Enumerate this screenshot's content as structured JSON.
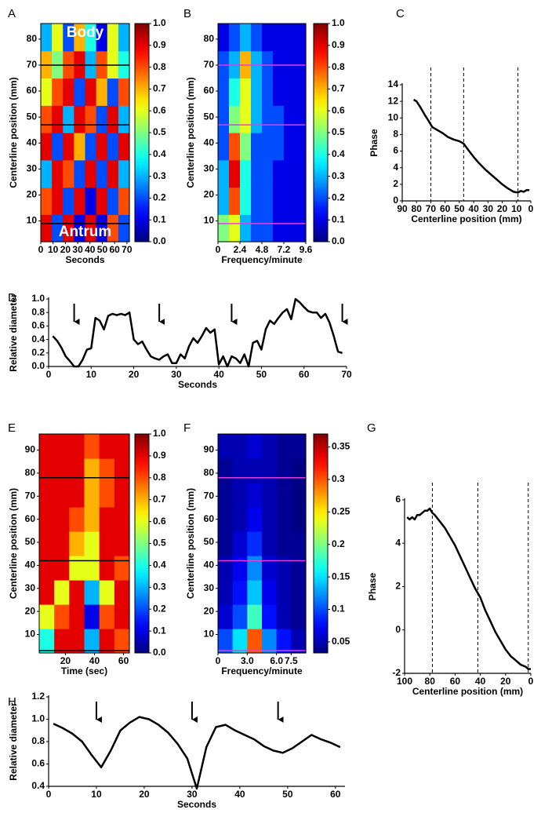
{
  "chart_data": [
    {
      "type": "heatmap",
      "label": "A",
      "xlabel": "Seconds",
      "ylabel": "Centerline position (mm)",
      "xlim": [
        0,
        72
      ],
      "ylim": [
        2,
        86
      ],
      "xticks": [
        0,
        10,
        20,
        30,
        40,
        50,
        60,
        70
      ],
      "yticks": [
        10,
        20,
        30,
        40,
        50,
        60,
        70,
        80
      ],
      "colormap": "jet",
      "clim": [
        0,
        1
      ],
      "cticks": [
        {
          "value": 0,
          "label": "0.0"
        },
        0.1,
        0.2,
        0.3,
        0.4,
        0.5,
        0.6,
        0.7,
        0.8,
        0.9,
        {
          "value": 1,
          "label": "1.0"
        }
      ],
      "hlines": [
        70,
        47,
        9
      ],
      "hline_color": "#000000",
      "annotations": [
        "Body",
        "Antrum"
      ],
      "z": [
        [
          0.9,
          0.2,
          0.9,
          0.1,
          0.9,
          0.1,
          0.8,
          0.2
        ],
        [
          0.8,
          0.9,
          0.2,
          0.9,
          0.1,
          0.9,
          0.2,
          0.8
        ],
        [
          0.3,
          0.9,
          0.8,
          0.2,
          0.9,
          0.2,
          0.9,
          0.3
        ],
        [
          0.9,
          0.2,
          0.9,
          0.7,
          0.2,
          0.9,
          0.2,
          0.9
        ],
        [
          0.8,
          0.9,
          0.3,
          0.9,
          0.8,
          0.2,
          0.9,
          0.3
        ],
        [
          0.6,
          0.8,
          0.9,
          0.2,
          0.9,
          0.7,
          0.2,
          0.8
        ],
        [
          0.7,
          0.5,
          0.8,
          0.9,
          0.3,
          0.8,
          0.6,
          0.4
        ],
        [
          0.3,
          0.6,
          0.2,
          0.7,
          0.4,
          0.1,
          0.6,
          0.3
        ]
      ]
    },
    {
      "type": "heatmap",
      "label": "B",
      "xlabel": "Frequency/minute",
      "ylabel": "Centerline position (mm)",
      "xlim": [
        0,
        9.6
      ],
      "ylim": [
        2,
        86
      ],
      "xticks": [
        0,
        2.4,
        4.8,
        7.2,
        9.6
      ],
      "yticks": [
        10,
        20,
        30,
        40,
        50,
        60,
        70,
        80
      ],
      "colormap": "jet",
      "clim": [
        0,
        1
      ],
      "cticks": [
        {
          "value": 0,
          "label": "0.0"
        },
        0.1,
        0.2,
        0.3,
        0.4,
        0.5,
        0.6,
        0.7,
        0.8,
        0.9,
        {
          "value": 1,
          "label": "1.0"
        }
      ],
      "hlines": [
        70,
        47,
        9
      ],
      "hline_color": "#e040e0",
      "z": [
        [
          0.5,
          0.6,
          0.3,
          0.2,
          0.2,
          0.1,
          0.1,
          0.1
        ],
        [
          0.3,
          0.8,
          0.4,
          0.2,
          0.2,
          0.1,
          0.1,
          0.1
        ],
        [
          0.3,
          0.9,
          0.4,
          0.2,
          0.2,
          0.1,
          0.1,
          0.1
        ],
        [
          0.2,
          0.8,
          0.5,
          0.2,
          0.2,
          0.2,
          0.1,
          0.1
        ],
        [
          0.2,
          0.5,
          0.6,
          0.3,
          0.2,
          0.2,
          0.1,
          0.1
        ],
        [
          0.2,
          0.4,
          0.6,
          0.3,
          0.2,
          0.1,
          0.1,
          0.1
        ],
        [
          0.2,
          0.3,
          0.7,
          0.3,
          0.2,
          0.1,
          0.1,
          0.1
        ],
        [
          0.1,
          0.2,
          0.3,
          0.2,
          0.1,
          0.1,
          0.1,
          0.1
        ]
      ]
    },
    {
      "type": "line",
      "label": "C",
      "xlabel": "Centerline position (mm)",
      "ylabel": "Phase",
      "color": "#000000",
      "xlim": [
        90,
        0
      ],
      "ylim": [
        0,
        14
      ],
      "xticks": [
        90,
        80,
        70,
        60,
        50,
        40,
        30,
        20,
        10,
        0
      ],
      "yticks": [
        0,
        2,
        4,
        6,
        8,
        10,
        12,
        14
      ],
      "vlines": [
        70,
        47,
        9
      ],
      "x": [
        82,
        80,
        77,
        74,
        71,
        69,
        66,
        62,
        58,
        54,
        50,
        47,
        44,
        40,
        36,
        32,
        28,
        24,
        20,
        16,
        12,
        9,
        7,
        5,
        3,
        1
      ],
      "values": [
        12.2,
        12.0,
        11.2,
        10.3,
        9.5,
        8.9,
        8.6,
        8.2,
        7.7,
        7.4,
        7.2,
        6.9,
        6.2,
        5.3,
        4.5,
        3.8,
        3.2,
        2.6,
        2.0,
        1.5,
        1.1,
        1.0,
        1.2,
        1.1,
        1.3,
        1.3
      ]
    },
    {
      "type": "line",
      "label": "D",
      "xlabel": "Seconds",
      "ylabel": "Relative diameter",
      "color": "#000000",
      "xlim": [
        0,
        70
      ],
      "ylim": [
        0,
        1
      ],
      "xticks": [
        0,
        10,
        20,
        30,
        40,
        50,
        60,
        70
      ],
      "yticks": [
        {
          "value": 0,
          "label": "0.0"
        },
        0.2,
        0.4,
        0.6,
        0.8,
        {
          "value": 1,
          "label": "1.0"
        }
      ],
      "arrows": [
        6,
        26,
        43,
        69
      ],
      "x": [
        1,
        2,
        3,
        4,
        5,
        6,
        7,
        8,
        9,
        10,
        11,
        12,
        13,
        14,
        15,
        16,
        17,
        18,
        19,
        20,
        21,
        22,
        23,
        24,
        25,
        26,
        27,
        28,
        29,
        30,
        31,
        32,
        33,
        34,
        35,
        36,
        37,
        38,
        39,
        40,
        41,
        42,
        43,
        44,
        45,
        46,
        47,
        48,
        49,
        50,
        51,
        52,
        53,
        54,
        55,
        56,
        57,
        58,
        59,
        60,
        61,
        62,
        63,
        64,
        65,
        66,
        67,
        68,
        69
      ],
      "values": [
        0.45,
        0.38,
        0.28,
        0.15,
        0.08,
        0.0,
        0.0,
        0.1,
        0.25,
        0.27,
        0.72,
        0.68,
        0.55,
        0.75,
        0.78,
        0.76,
        0.78,
        0.76,
        0.8,
        0.4,
        0.33,
        0.37,
        0.25,
        0.15,
        0.12,
        0.1,
        0.15,
        0.18,
        0.05,
        0.05,
        0.18,
        0.12,
        0.3,
        0.42,
        0.35,
        0.45,
        0.57,
        0.5,
        0.55,
        0.03,
        0.15,
        0.0,
        0.15,
        0.12,
        0.05,
        0.18,
        0.0,
        0.35,
        0.38,
        0.25,
        0.55,
        0.68,
        0.63,
        0.72,
        0.8,
        0.85,
        0.7,
        1.0,
        0.95,
        0.88,
        0.82,
        0.8,
        0.8,
        0.72,
        0.78,
        0.65,
        0.45,
        0.22,
        0.2
      ]
    },
    {
      "type": "heatmap",
      "label": "E",
      "xlabel": "Time (sec)",
      "ylabel": "Centerline position (mm)",
      "xlim": [
        2,
        64
      ],
      "ylim": [
        2,
        97
      ],
      "xticks": [
        20,
        40,
        60
      ],
      "yticks": [
        10,
        20,
        30,
        40,
        50,
        60,
        70,
        80,
        90
      ],
      "colormap": "jet",
      "clim": [
        0,
        1
      ],
      "cticks": [
        {
          "value": 0,
          "label": "0.0"
        },
        0.1,
        0.2,
        0.3,
        0.4,
        0.5,
        0.6,
        0.7,
        0.8,
        0.9,
        {
          "value": 1,
          "label": "1.0"
        }
      ],
      "hlines": [
        78,
        42,
        3
      ],
      "hline_color": "#000000",
      "z": [
        [
          0.4,
          0.9,
          0.9,
          0.3,
          0.9,
          0.8
        ],
        [
          0.6,
          0.8,
          0.9,
          0.1,
          0.8,
          0.9
        ],
        [
          0.9,
          0.6,
          0.9,
          0.3,
          0.6,
          0.9
        ],
        [
          0.9,
          0.9,
          0.6,
          0.6,
          0.9,
          0.8
        ],
        [
          0.9,
          0.9,
          0.7,
          0.6,
          0.9,
          0.9
        ],
        [
          0.9,
          0.9,
          0.8,
          0.7,
          0.9,
          0.9
        ],
        [
          0.9,
          0.9,
          0.9,
          0.7,
          0.8,
          0.9
        ],
        [
          0.9,
          0.9,
          0.9,
          0.7,
          0.8,
          0.9
        ],
        [
          0.9,
          0.9,
          0.9,
          0.8,
          0.9,
          0.9
        ]
      ]
    },
    {
      "type": "heatmap",
      "label": "F",
      "xlabel": "Frequency/minute",
      "ylabel": "Centerline position (mm)",
      "xlim": [
        0,
        9
      ],
      "ylim": [
        2,
        97
      ],
      "xticks": [
        0,
        {
          "value": 3,
          "label": "3.0"
        },
        {
          "value": 6,
          "label": "6.0"
        },
        7.5
      ],
      "yticks": [
        10,
        20,
        30,
        40,
        50,
        60,
        70,
        80,
        90
      ],
      "colormap": "jet",
      "clim": [
        0.033,
        0.37
      ],
      "cticks": [
        0.05,
        0.1,
        0.15,
        0.2,
        0.25,
        0.3,
        0.35
      ],
      "hlines": [
        78,
        42,
        3
      ],
      "hline_color": "#e040e0",
      "z": [
        [
          0.1,
          0.15,
          0.3,
          0.12,
          0.08,
          0.05
        ],
        [
          0.06,
          0.1,
          0.18,
          0.08,
          0.05,
          0.04
        ],
        [
          0.05,
          0.08,
          0.14,
          0.07,
          0.05,
          0.04
        ],
        [
          0.05,
          0.07,
          0.12,
          0.06,
          0.05,
          0.04
        ],
        [
          0.04,
          0.06,
          0.09,
          0.05,
          0.04,
          0.04
        ],
        [
          0.04,
          0.05,
          0.07,
          0.05,
          0.04,
          0.035
        ],
        [
          0.04,
          0.05,
          0.06,
          0.05,
          0.04,
          0.035
        ],
        [
          0.04,
          0.05,
          0.05,
          0.05,
          0.04,
          0.035
        ],
        [
          0.05,
          0.05,
          0.06,
          0.05,
          0.04,
          0.04
        ]
      ]
    },
    {
      "type": "line",
      "label": "G",
      "xlabel": "Centerline position (mm)",
      "ylabel": "Phase",
      "color": "#000000",
      "xlim": [
        100,
        0
      ],
      "ylim": [
        -2,
        6
      ],
      "xticks": [
        100,
        80,
        60,
        40,
        20,
        0
      ],
      "yticks": [
        -2,
        0,
        2,
        4,
        6
      ],
      "vlines": [
        78,
        42,
        2
      ],
      "x": [
        98,
        96,
        94,
        92,
        90,
        88,
        86,
        84,
        82,
        80,
        78,
        76,
        72,
        68,
        64,
        60,
        56,
        52,
        48,
        44,
        40,
        36,
        32,
        28,
        24,
        20,
        16,
        12,
        8,
        4,
        2,
        0
      ],
      "values": [
        5.2,
        5.1,
        5.2,
        5.1,
        5.3,
        5.3,
        5.4,
        5.5,
        5.5,
        5.6,
        5.4,
        5.3,
        5.0,
        4.7,
        4.3,
        3.9,
        3.4,
        2.9,
        2.4,
        1.9,
        1.5,
        0.9,
        0.4,
        -0.1,
        -0.5,
        -0.9,
        -1.2,
        -1.4,
        -1.6,
        -1.7,
        -1.8,
        -1.8
      ]
    },
    {
      "type": "line",
      "label": "H",
      "xlabel": "Seconds",
      "ylabel": "Relative diameter",
      "color": "#000000",
      "xlim": [
        0,
        62
      ],
      "ylim": [
        0.4,
        1.2
      ],
      "xticks": [
        0,
        10,
        20,
        30,
        40,
        50,
        60
      ],
      "yticks": [
        0.4,
        0.6,
        0.8,
        {
          "value": 1,
          "label": "1.0"
        },
        1.2
      ],
      "arrows": [
        10,
        30,
        48
      ],
      "x": [
        1,
        3,
        5,
        7,
        9,
        11,
        13,
        15,
        17,
        19,
        21,
        23,
        25,
        27,
        29,
        31,
        33,
        35,
        37,
        39,
        41,
        43,
        45,
        47,
        49,
        51,
        53,
        55,
        57,
        59,
        61
      ],
      "values": [
        0.96,
        0.92,
        0.87,
        0.8,
        0.68,
        0.57,
        0.72,
        0.9,
        0.97,
        1.02,
        1.0,
        0.95,
        0.88,
        0.78,
        0.65,
        0.38,
        0.75,
        0.93,
        0.95,
        0.9,
        0.86,
        0.82,
        0.76,
        0.72,
        0.7,
        0.74,
        0.8,
        0.86,
        0.82,
        0.79,
        0.75
      ]
    }
  ]
}
